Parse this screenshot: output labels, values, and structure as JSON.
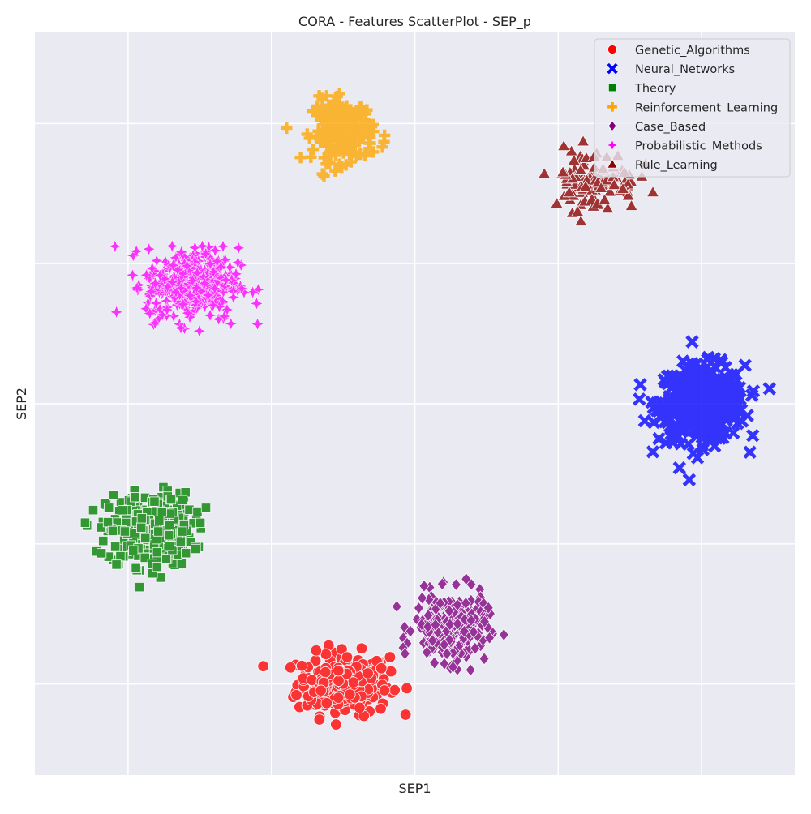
{
  "chart_data": {
    "type": "scatter",
    "title": "CORA - Features ScatterPlot - SEP_p",
    "xlabel": "SEP1",
    "ylabel": "SEP2",
    "xlim": [
      -2.65,
      2.65
    ],
    "ylim": [
      -2.65,
      2.65
    ],
    "grid": true,
    "background": "#eaeaf2",
    "legend_position": "top-right",
    "x_ticks": [
      -2,
      -1,
      0,
      1,
      2
    ],
    "y_ticks": [
      -2,
      -1,
      0,
      1,
      2
    ],
    "x_tick_labels_visible": false,
    "y_tick_labels_visible": false,
    "series": [
      {
        "name": "Genetic_Algorithms",
        "color": "#ff0000",
        "marker": "circle",
        "center": [
          -0.5,
          -2.0
        ],
        "spread": [
          0.32,
          0.22
        ],
        "count": 240
      },
      {
        "name": "Neural_Networks",
        "color": "#0000ff",
        "marker": "x",
        "center": [
          2.0,
          0.0
        ],
        "spread": [
          0.3,
          0.27
        ],
        "count": 440
      },
      {
        "name": "Theory",
        "color": "#008000",
        "marker": "square",
        "center": [
          -1.85,
          -0.9
        ],
        "spread": [
          0.3,
          0.26
        ],
        "count": 330
      },
      {
        "name": "Reinforcement_Learning",
        "color": "#ffa500",
        "marker": "plus",
        "center": [
          -0.5,
          1.95
        ],
        "spread": [
          0.21,
          0.22
        ],
        "count": 200
      },
      {
        "name": "Case_Based",
        "color": "#800080",
        "marker": "diamond",
        "center": [
          0.25,
          -1.6
        ],
        "spread": [
          0.25,
          0.24
        ],
        "count": 270
      },
      {
        "name": "Probabilistic_Methods",
        "color": "#ff00ff",
        "marker": "star",
        "center": [
          -1.55,
          0.85
        ],
        "spread": [
          0.32,
          0.26
        ],
        "count": 330
      },
      {
        "name": "Rule_Learning",
        "color": "#8b0000",
        "marker": "triangle",
        "center": [
          1.25,
          1.6
        ],
        "spread": [
          0.3,
          0.22
        ],
        "count": 110
      }
    ]
  }
}
